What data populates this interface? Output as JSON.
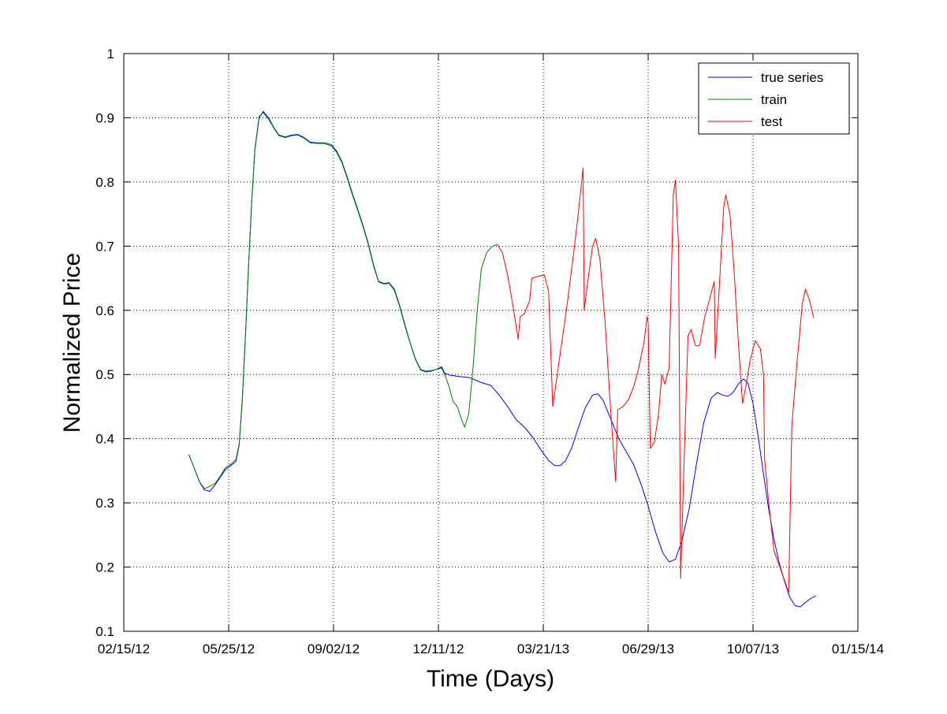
{
  "chart_data": {
    "type": "line",
    "title": "",
    "xlabel": "Time (Days)",
    "ylabel": "Normalized Price",
    "x_axis": {
      "kind": "date",
      "range": [
        "2012-02-15",
        "2014-01-15"
      ],
      "ticks": [
        {
          "date": "2012-02-15",
          "label": "02/15/12"
        },
        {
          "date": "2012-05-25",
          "label": "05/25/12"
        },
        {
          "date": "2012-09-02",
          "label": "09/02/12"
        },
        {
          "date": "2012-12-11",
          "label": "12/11/12"
        },
        {
          "date": "2013-03-21",
          "label": "03/21/13"
        },
        {
          "date": "2013-06-29",
          "label": "06/29/13"
        },
        {
          "date": "2013-10-07",
          "label": "10/07/13"
        },
        {
          "date": "2014-01-15",
          "label": "01/15/14"
        }
      ]
    },
    "y_axis": {
      "range": [
        0.1,
        1.0
      ],
      "ticks": [
        {
          "value": 0.1,
          "label": "0.1"
        },
        {
          "value": 0.2,
          "label": "0.2"
        },
        {
          "value": 0.3,
          "label": "0.3"
        },
        {
          "value": 0.4,
          "label": "0.4"
        },
        {
          "value": 0.5,
          "label": "0.5"
        },
        {
          "value": 0.6,
          "label": "0.6"
        },
        {
          "value": 0.7,
          "label": "0.7"
        },
        {
          "value": 0.8,
          "label": "0.8"
        },
        {
          "value": 0.9,
          "label": "0.9"
        },
        {
          "value": 1.0,
          "label": "1"
        }
      ]
    },
    "grid": true,
    "legend": {
      "position": "top-right",
      "entries": [
        {
          "label": "true series",
          "color": "#0000ff"
        },
        {
          "label": "train",
          "color": "#008000"
        },
        {
          "label": "test",
          "color": "#ff0000"
        }
      ]
    },
    "series": [
      {
        "name": "true series",
        "color": "#0000ff",
        "points": [
          [
            "2012-04-17",
            0.375
          ],
          [
            "2012-04-22",
            0.355
          ],
          [
            "2012-04-27",
            0.333
          ],
          [
            "2012-05-02",
            0.32
          ],
          [
            "2012-05-07",
            0.318
          ],
          [
            "2012-05-12",
            0.328
          ],
          [
            "2012-05-17",
            0.34
          ],
          [
            "2012-05-22",
            0.352
          ],
          [
            "2012-05-27",
            0.358
          ],
          [
            "2012-06-01",
            0.365
          ],
          [
            "2012-06-04",
            0.39
          ],
          [
            "2012-06-07",
            0.46
          ],
          [
            "2012-06-10",
            0.56
          ],
          [
            "2012-06-13",
            0.67
          ],
          [
            "2012-06-16",
            0.77
          ],
          [
            "2012-06-19",
            0.85
          ],
          [
            "2012-06-23",
            0.9
          ],
          [
            "2012-06-27",
            0.91
          ],
          [
            "2012-07-02",
            0.9
          ],
          [
            "2012-07-07",
            0.885
          ],
          [
            "2012-07-12",
            0.873
          ],
          [
            "2012-07-18",
            0.87
          ],
          [
            "2012-07-24",
            0.873
          ],
          [
            "2012-07-30",
            0.874
          ],
          [
            "2012-08-05",
            0.869
          ],
          [
            "2012-08-11",
            0.862
          ],
          [
            "2012-08-17",
            0.861
          ],
          [
            "2012-08-24",
            0.861
          ],
          [
            "2012-08-31",
            0.858
          ],
          [
            "2012-09-05",
            0.848
          ],
          [
            "2012-09-10",
            0.832
          ],
          [
            "2012-09-15",
            0.808
          ],
          [
            "2012-09-20",
            0.782
          ],
          [
            "2012-09-25",
            0.758
          ],
          [
            "2012-09-30",
            0.733
          ],
          [
            "2012-10-05",
            0.705
          ],
          [
            "2012-10-10",
            0.672
          ],
          [
            "2012-10-15",
            0.645
          ],
          [
            "2012-10-20",
            0.642
          ],
          [
            "2012-10-25",
            0.643
          ],
          [
            "2012-10-30",
            0.633
          ],
          [
            "2012-11-04",
            0.608
          ],
          [
            "2012-11-09",
            0.578
          ],
          [
            "2012-11-14",
            0.55
          ],
          [
            "2012-11-19",
            0.525
          ],
          [
            "2012-11-24",
            0.508
          ],
          [
            "2012-11-29",
            0.505
          ],
          [
            "2012-12-04",
            0.506
          ],
          [
            "2012-12-09",
            0.508
          ],
          [
            "2012-12-14",
            0.512
          ],
          [
            "2012-12-17",
            0.502
          ],
          [
            "2012-12-22",
            0.499
          ],
          [
            "2012-12-31",
            0.497
          ],
          [
            "2013-01-10",
            0.495
          ],
          [
            "2013-01-20",
            0.488
          ],
          [
            "2013-01-30",
            0.483
          ],
          [
            "2013-02-07",
            0.468
          ],
          [
            "2013-02-15",
            0.45
          ],
          [
            "2013-02-23",
            0.43
          ],
          [
            "2013-03-03",
            0.418
          ],
          [
            "2013-03-11",
            0.402
          ],
          [
            "2013-03-19",
            0.382
          ],
          [
            "2013-03-26",
            0.366
          ],
          [
            "2013-04-01",
            0.358
          ],
          [
            "2013-04-06",
            0.358
          ],
          [
            "2013-04-11",
            0.365
          ],
          [
            "2013-04-17",
            0.385
          ],
          [
            "2013-04-23",
            0.415
          ],
          [
            "2013-04-30",
            0.448
          ],
          [
            "2013-05-07",
            0.468
          ],
          [
            "2013-05-12",
            0.47
          ],
          [
            "2013-05-17",
            0.46
          ],
          [
            "2013-05-24",
            0.432
          ],
          [
            "2013-06-01",
            0.4
          ],
          [
            "2013-06-08",
            0.38
          ],
          [
            "2013-06-15",
            0.36
          ],
          [
            "2013-06-22",
            0.33
          ],
          [
            "2013-06-29",
            0.295
          ],
          [
            "2013-07-06",
            0.255
          ],
          [
            "2013-07-13",
            0.222
          ],
          [
            "2013-07-19",
            0.208
          ],
          [
            "2013-07-25",
            0.212
          ],
          [
            "2013-07-31",
            0.24
          ],
          [
            "2013-08-07",
            0.29
          ],
          [
            "2013-08-14",
            0.36
          ],
          [
            "2013-08-21",
            0.425
          ],
          [
            "2013-08-28",
            0.463
          ],
          [
            "2013-09-03",
            0.472
          ],
          [
            "2013-09-08",
            0.468
          ],
          [
            "2013-09-13",
            0.466
          ],
          [
            "2013-09-18",
            0.472
          ],
          [
            "2013-09-23",
            0.485
          ],
          [
            "2013-09-28",
            0.493
          ],
          [
            "2013-10-02",
            0.487
          ],
          [
            "2013-10-07",
            0.455
          ],
          [
            "2013-10-12",
            0.402
          ],
          [
            "2013-10-17",
            0.345
          ],
          [
            "2013-10-22",
            0.29
          ],
          [
            "2013-10-27",
            0.243
          ],
          [
            "2013-11-01",
            0.206
          ],
          [
            "2013-11-06",
            0.178
          ],
          [
            "2013-11-11",
            0.153
          ],
          [
            "2013-11-16",
            0.14
          ],
          [
            "2013-11-21",
            0.138
          ],
          [
            "2013-11-26",
            0.145
          ],
          [
            "2013-12-02",
            0.152
          ],
          [
            "2013-12-06",
            0.155
          ]
        ]
      },
      {
        "name": "train",
        "color": "#008000",
        "points": [
          [
            "2012-04-17",
            0.375
          ],
          [
            "2012-04-22",
            0.355
          ],
          [
            "2012-04-27",
            0.333
          ],
          [
            "2012-05-02",
            0.322
          ],
          [
            "2012-05-07",
            0.326
          ],
          [
            "2012-05-12",
            0.33
          ],
          [
            "2012-05-17",
            0.342
          ],
          [
            "2012-05-22",
            0.355
          ],
          [
            "2012-05-27",
            0.36
          ],
          [
            "2012-06-01",
            0.368
          ],
          [
            "2012-06-04",
            0.392
          ],
          [
            "2012-06-07",
            0.462
          ],
          [
            "2012-06-10",
            0.562
          ],
          [
            "2012-06-13",
            0.672
          ],
          [
            "2012-06-16",
            0.772
          ],
          [
            "2012-06-19",
            0.852
          ],
          [
            "2012-06-23",
            0.902
          ],
          [
            "2012-06-27",
            0.908
          ],
          [
            "2012-07-02",
            0.898
          ],
          [
            "2012-07-07",
            0.884
          ],
          [
            "2012-07-12",
            0.872
          ],
          [
            "2012-07-18",
            0.869
          ],
          [
            "2012-07-24",
            0.872
          ],
          [
            "2012-07-30",
            0.873
          ],
          [
            "2012-08-05",
            0.868
          ],
          [
            "2012-08-11",
            0.861
          ],
          [
            "2012-08-17",
            0.86
          ],
          [
            "2012-08-24",
            0.86
          ],
          [
            "2012-08-31",
            0.856
          ],
          [
            "2012-09-05",
            0.846
          ],
          [
            "2012-09-10",
            0.83
          ],
          [
            "2012-09-15",
            0.806
          ],
          [
            "2012-09-20",
            0.78
          ],
          [
            "2012-09-25",
            0.756
          ],
          [
            "2012-09-30",
            0.731
          ],
          [
            "2012-10-05",
            0.703
          ],
          [
            "2012-10-10",
            0.67
          ],
          [
            "2012-10-15",
            0.644
          ],
          [
            "2012-10-20",
            0.641
          ],
          [
            "2012-10-25",
            0.642
          ],
          [
            "2012-10-30",
            0.631
          ],
          [
            "2012-11-04",
            0.606
          ],
          [
            "2012-11-09",
            0.576
          ],
          [
            "2012-11-14",
            0.549
          ],
          [
            "2012-11-19",
            0.524
          ],
          [
            "2012-11-24",
            0.507
          ],
          [
            "2012-11-29",
            0.504
          ],
          [
            "2012-12-04",
            0.505
          ],
          [
            "2012-12-09",
            0.508
          ],
          [
            "2012-12-14",
            0.51
          ],
          [
            "2012-12-17",
            0.5
          ],
          [
            "2012-12-21",
            0.482
          ],
          [
            "2012-12-25",
            0.458
          ],
          [
            "2012-12-29",
            0.45
          ],
          [
            "2013-01-02",
            0.43
          ],
          [
            "2013-01-05",
            0.418
          ],
          [
            "2013-01-09",
            0.44
          ],
          [
            "2013-01-13",
            0.51
          ],
          [
            "2013-01-17",
            0.6
          ],
          [
            "2013-01-21",
            0.665
          ],
          [
            "2013-01-26",
            0.69
          ],
          [
            "2013-01-31",
            0.699
          ],
          [
            "2013-02-05",
            0.703
          ]
        ]
      },
      {
        "name": "test",
        "color": "#ff0000",
        "points": [
          [
            "2013-02-05",
            0.703
          ],
          [
            "2013-02-10",
            0.69
          ],
          [
            "2013-02-15",
            0.655
          ],
          [
            "2013-02-20",
            0.608
          ],
          [
            "2013-02-25",
            0.555
          ],
          [
            "2013-02-27",
            0.59
          ],
          [
            "2013-03-03",
            0.595
          ],
          [
            "2013-03-08",
            0.615
          ],
          [
            "2013-03-10",
            0.65
          ],
          [
            "2013-03-16",
            0.653
          ],
          [
            "2013-03-22",
            0.655
          ],
          [
            "2013-03-26",
            0.63
          ],
          [
            "2013-03-30",
            0.45
          ],
          [
            "2013-04-05",
            0.52
          ],
          [
            "2013-04-12",
            0.6
          ],
          [
            "2013-04-19",
            0.69
          ],
          [
            "2013-04-24",
            0.76
          ],
          [
            "2013-04-28",
            0.822
          ],
          [
            "2013-04-29",
            0.6
          ],
          [
            "2013-05-02",
            0.64
          ],
          [
            "2013-05-07",
            0.7
          ],
          [
            "2013-05-10",
            0.712
          ],
          [
            "2013-05-14",
            0.68
          ],
          [
            "2013-05-19",
            0.58
          ],
          [
            "2013-05-24",
            0.45
          ],
          [
            "2013-05-29",
            0.333
          ],
          [
            "2013-05-31",
            0.445
          ],
          [
            "2013-06-05",
            0.45
          ],
          [
            "2013-06-10",
            0.46
          ],
          [
            "2013-06-15",
            0.48
          ],
          [
            "2013-06-20",
            0.51
          ],
          [
            "2013-06-25",
            0.55
          ],
          [
            "2013-06-28",
            0.59
          ],
          [
            "2013-06-29",
            0.58
          ],
          [
            "2013-07-01",
            0.385
          ],
          [
            "2013-07-05",
            0.395
          ],
          [
            "2013-07-09",
            0.44
          ],
          [
            "2013-07-12",
            0.5
          ],
          [
            "2013-07-15",
            0.485
          ],
          [
            "2013-07-19",
            0.51
          ],
          [
            "2013-07-23",
            0.78
          ],
          [
            "2013-07-25",
            0.803
          ],
          [
            "2013-07-28",
            0.7
          ],
          [
            "2013-07-30",
            0.182
          ],
          [
            "2013-08-02",
            0.35
          ],
          [
            "2013-08-06",
            0.56
          ],
          [
            "2013-08-09",
            0.57
          ],
          [
            "2013-08-13",
            0.545
          ],
          [
            "2013-08-17",
            0.545
          ],
          [
            "2013-08-22",
            0.59
          ],
          [
            "2013-08-27",
            0.62
          ],
          [
            "2013-08-31",
            0.645
          ],
          [
            "2013-09-01",
            0.525
          ],
          [
            "2013-09-05",
            0.64
          ],
          [
            "2013-09-09",
            0.76
          ],
          [
            "2013-09-11",
            0.78
          ],
          [
            "2013-09-15",
            0.75
          ],
          [
            "2013-09-19",
            0.66
          ],
          [
            "2013-09-23",
            0.55
          ],
          [
            "2013-09-27",
            0.455
          ],
          [
            "2013-09-30",
            0.48
          ],
          [
            "2013-10-04",
            0.52
          ],
          [
            "2013-10-09",
            0.553
          ],
          [
            "2013-10-14",
            0.54
          ],
          [
            "2013-10-17",
            0.5
          ],
          [
            "2013-10-18",
            0.37
          ],
          [
            "2013-10-22",
            0.3
          ],
          [
            "2013-10-27",
            0.225
          ],
          [
            "2013-11-02",
            0.198
          ],
          [
            "2013-11-07",
            0.175
          ],
          [
            "2013-11-10",
            0.16
          ],
          [
            "2013-11-13",
            0.42
          ],
          [
            "2013-11-18",
            0.52
          ],
          [
            "2013-11-23",
            0.61
          ],
          [
            "2013-11-26",
            0.633
          ],
          [
            "2013-11-30",
            0.615
          ],
          [
            "2013-12-04",
            0.588
          ]
        ]
      }
    ]
  }
}
